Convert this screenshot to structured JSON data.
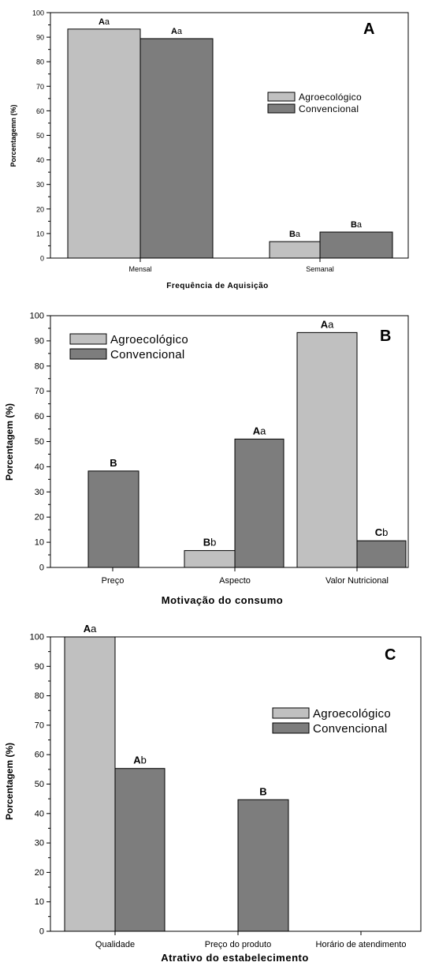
{
  "colors": {
    "agroecologico": "#c0c0c0",
    "convencional": "#7d7d7d",
    "stroke": "#000000"
  },
  "chart_data": [
    {
      "type": "bar",
      "panel_label": "A",
      "categories": [
        "Mensal",
        "Semanal"
      ],
      "series": [
        {
          "name": "Agroecológico",
          "values": [
            93.3,
            6.7
          ],
          "labels": [
            "Aa",
            "Ba"
          ]
        },
        {
          "name": "Convencional",
          "values": [
            89.4,
            10.6
          ],
          "labels": [
            "Aa",
            "Ba"
          ]
        }
      ],
      "xlabel": "Frequência de Aquisição",
      "ylabel": "Porcentagemn (%)",
      "ylim": [
        0,
        100
      ],
      "yticks": [
        "0",
        "10",
        "20",
        "30",
        "40",
        "50",
        "60",
        "70",
        "80",
        "90",
        "100"
      ],
      "legend": "top-right"
    },
    {
      "type": "bar",
      "panel_label": "B",
      "categories": [
        "Preço",
        "Aspecto",
        "Valor Nutricional"
      ],
      "series": [
        {
          "name": "Agroecológico",
          "values": [
            0,
            6.7,
            93.3
          ],
          "labels": [
            "",
            "Bb",
            "Aa"
          ]
        },
        {
          "name": "Convencional",
          "values": [
            38.3,
            51,
            10.6
          ],
          "labels": [
            "B",
            "Aa",
            "Cb"
          ]
        }
      ],
      "xlabel": "Motivação do consumo",
      "ylabel": "Porcentagem (%)",
      "ylim": [
        0,
        100
      ],
      "yticks": [
        "0",
        "10",
        "20",
        "30",
        "40",
        "50",
        "60",
        "70",
        "80",
        "90",
        "100"
      ],
      "legend": "top-left"
    },
    {
      "type": "bar",
      "panel_label": "C",
      "categories": [
        "Qualidade",
        "Preço do produto",
        "Horário de atendimento"
      ],
      "series": [
        {
          "name": "Agroecológico",
          "values": [
            100,
            0,
            0
          ],
          "labels": [
            "Aa",
            "",
            ""
          ]
        },
        {
          "name": "Convencional",
          "values": [
            55.3,
            44.7,
            0
          ],
          "labels": [
            "Ab",
            "B",
            ""
          ]
        }
      ],
      "xlabel": "Atrativo do estabelecimento",
      "ylabel": "Porcentagem (%)",
      "ylim": [
        0,
        100
      ],
      "yticks": [
        "0",
        "10",
        "20",
        "30",
        "40",
        "50",
        "60",
        "70",
        "80",
        "90",
        "100"
      ],
      "legend": "top-right"
    }
  ]
}
